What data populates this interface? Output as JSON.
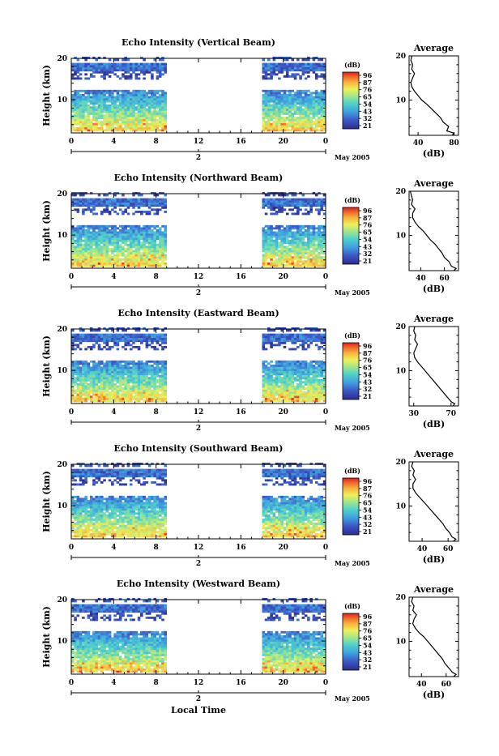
{
  "figure": {
    "global_xlabel": "Local Time",
    "time_ticks": [
      "0",
      "4",
      "8",
      "12",
      "16",
      "20",
      "0"
    ],
    "date_tick": "2",
    "date_label": "May 2005",
    "ylabel": "Height (km)",
    "y_ticks": [
      "10",
      "20"
    ],
    "avg_title": "Average",
    "avg_xlabel": "(dB)",
    "colorbar_title": "(dB)",
    "colorbar_labels": [
      "96",
      "87",
      "76",
      "65",
      "54",
      "43",
      "32",
      "21"
    ],
    "colorbar_colors": [
      "#d7191c",
      "#f46d43",
      "#fdae61",
      "#fee08b",
      "#ffffbf",
      "#c7e9a0",
      "#66c2a5",
      "#3fb0d0",
      "#4575b4",
      "#313695"
    ]
  },
  "chart_data": [
    {
      "type": "heatmap",
      "title": "Echo Intensity (Vertical Beam)",
      "x_range_hours": [
        0,
        24
      ],
      "y_range_km": [
        2,
        20
      ],
      "data_gap_hours": [
        9,
        18
      ],
      "color_range_db": [
        21,
        96
      ],
      "average_profile": {
        "type": "line",
        "title": "Average",
        "xlabel": "(dB)",
        "x_ticks": [
          "40",
          "80"
        ],
        "xlim": [
          30,
          85
        ],
        "ylim": [
          2,
          20
        ],
        "y_ticks": [
          "10",
          "20"
        ],
        "points": [
          [
            78,
            2
          ],
          [
            80,
            2.5
          ],
          [
            72,
            3
          ],
          [
            74,
            4
          ],
          [
            68,
            5
          ],
          [
            65,
            6
          ],
          [
            60,
            7
          ],
          [
            55,
            8
          ],
          [
            50,
            9
          ],
          [
            44,
            10
          ],
          [
            40,
            11
          ],
          [
            36,
            12
          ],
          [
            33,
            13
          ],
          [
            32,
            14
          ],
          [
            34,
            15
          ],
          [
            36,
            16
          ],
          [
            33,
            17
          ],
          [
            34,
            18
          ],
          [
            32,
            19
          ],
          [
            33,
            20
          ]
        ]
      }
    },
    {
      "type": "heatmap",
      "title": "Echo Intensity (Northward Beam)",
      "x_range_hours": [
        0,
        24
      ],
      "y_range_km": [
        2,
        20
      ],
      "data_gap_hours": [
        9,
        18
      ],
      "color_range_db": [
        21,
        96
      ],
      "average_profile": {
        "type": "line",
        "title": "Average",
        "xlabel": "(dB)",
        "x_ticks": [
          "40",
          "60"
        ],
        "xlim": [
          30,
          72
        ],
        "ylim": [
          2,
          20
        ],
        "y_ticks": [
          "10",
          "20"
        ],
        "points": [
          [
            68,
            2
          ],
          [
            70,
            2.5
          ],
          [
            66,
            3
          ],
          [
            64,
            4
          ],
          [
            60,
            5
          ],
          [
            58,
            6
          ],
          [
            55,
            7
          ],
          [
            52,
            8
          ],
          [
            48,
            9
          ],
          [
            45,
            10
          ],
          [
            42,
            11
          ],
          [
            38,
            12
          ],
          [
            35,
            13
          ],
          [
            33,
            14
          ],
          [
            33,
            15
          ],
          [
            35,
            16
          ],
          [
            32,
            17
          ],
          [
            33,
            18
          ],
          [
            32,
            19
          ],
          [
            31,
            20
          ]
        ]
      }
    },
    {
      "type": "heatmap",
      "title": "Echo Intensity (Eastward Beam)",
      "x_range_hours": [
        0,
        24
      ],
      "y_range_km": [
        2,
        20
      ],
      "data_gap_hours": [
        9,
        18
      ],
      "color_range_db": [
        21,
        96
      ],
      "average_profile": {
        "type": "line",
        "title": "Average",
        "xlabel": "(dB)",
        "x_ticks": [
          "30",
          "70"
        ],
        "xlim": [
          25,
          78
        ],
        "ylim": [
          2,
          20
        ],
        "y_ticks": [
          "10",
          "20"
        ],
        "points": [
          [
            72,
            2
          ],
          [
            74,
            2.5
          ],
          [
            70,
            3
          ],
          [
            66,
            4
          ],
          [
            62,
            5
          ],
          [
            58,
            6
          ],
          [
            54,
            7
          ],
          [
            50,
            8
          ],
          [
            46,
            9
          ],
          [
            42,
            10
          ],
          [
            38,
            11
          ],
          [
            34,
            12
          ],
          [
            31,
            13
          ],
          [
            30,
            14
          ],
          [
            32,
            15
          ],
          [
            34,
            16
          ],
          [
            31,
            17
          ],
          [
            32,
            18
          ],
          [
            30,
            19
          ],
          [
            31,
            20
          ]
        ]
      }
    },
    {
      "type": "heatmap",
      "title": "Echo Intensity (Southward Beam)",
      "x_range_hours": [
        0,
        24
      ],
      "y_range_km": [
        2,
        20
      ],
      "data_gap_hours": [
        9,
        18
      ],
      "color_range_db": [
        21,
        96
      ],
      "average_profile": {
        "type": "line",
        "title": "Average",
        "xlabel": "(dB)",
        "x_ticks": [
          "40",
          "60"
        ],
        "xlim": [
          30,
          68
        ],
        "ylim": [
          2,
          20
        ],
        "y_ticks": [
          "10",
          "20"
        ],
        "points": [
          [
            64,
            2
          ],
          [
            66,
            2.5
          ],
          [
            63,
            3
          ],
          [
            61,
            4
          ],
          [
            58,
            5
          ],
          [
            56,
            6
          ],
          [
            53,
            7
          ],
          [
            50,
            8
          ],
          [
            47,
            9
          ],
          [
            44,
            10
          ],
          [
            41,
            11
          ],
          [
            38,
            12
          ],
          [
            35,
            13
          ],
          [
            33,
            14
          ],
          [
            33,
            15
          ],
          [
            35,
            16
          ],
          [
            33,
            17
          ],
          [
            34,
            18
          ],
          [
            32,
            19
          ],
          [
            33,
            20
          ]
        ]
      }
    },
    {
      "type": "heatmap",
      "title": "Echo Intensity (Westward Beam)",
      "x_range_hours": [
        0,
        24
      ],
      "y_range_km": [
        2,
        20
      ],
      "data_gap_hours": [
        9,
        18
      ],
      "color_range_db": [
        21,
        96
      ],
      "average_profile": {
        "type": "line",
        "title": "Average",
        "xlabel": "(dB)",
        "x_ticks": [
          "40",
          "60"
        ],
        "xlim": [
          30,
          70
        ],
        "ylim": [
          2,
          20
        ],
        "y_ticks": [
          "10",
          "20"
        ],
        "points": [
          [
            66,
            2
          ],
          [
            68,
            2.5
          ],
          [
            65,
            3
          ],
          [
            62,
            4
          ],
          [
            59,
            5
          ],
          [
            57,
            6
          ],
          [
            54,
            7
          ],
          [
            51,
            8
          ],
          [
            48,
            9
          ],
          [
            45,
            10
          ],
          [
            42,
            11
          ],
          [
            38,
            12
          ],
          [
            35,
            13
          ],
          [
            33,
            14
          ],
          [
            34,
            15
          ],
          [
            36,
            16
          ],
          [
            33,
            17
          ],
          [
            34,
            18
          ],
          [
            32,
            19
          ],
          [
            33,
            20
          ]
        ]
      }
    }
  ]
}
